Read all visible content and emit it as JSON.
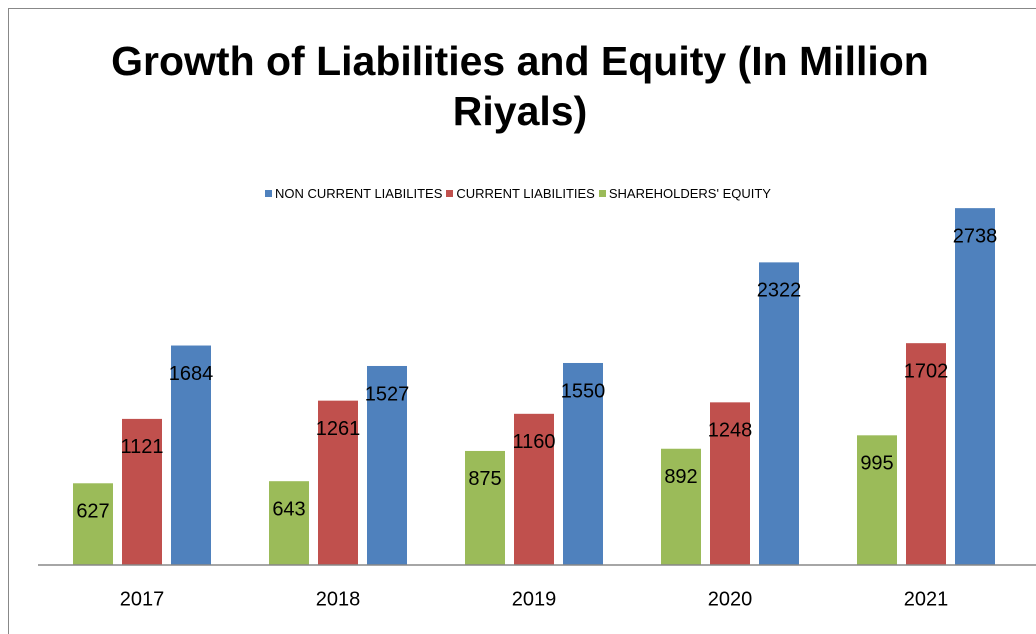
{
  "chart_data": {
    "type": "bar",
    "title": "Growth of Liabilities and Equity (In Million Riyals)",
    "categories": [
      "2017",
      "2018",
      "2019",
      "2020",
      "2021"
    ],
    "series": [
      {
        "name": "NON CURRENT LIABILITES",
        "color": "#4f81bd",
        "values": [
          1684,
          1527,
          1550,
          2322,
          2738
        ]
      },
      {
        "name": "CURRENT LIABILITIES",
        "color": "#c0504d",
        "values": [
          1121,
          1261,
          1160,
          1248,
          1702
        ]
      },
      {
        "name": "SHAREHOLDERS' EQUITY",
        "color": "#9bbb59",
        "values": [
          627,
          643,
          875,
          892,
          995
        ]
      }
    ],
    "ylim": [
      0,
      3000
    ],
    "legend": "top"
  }
}
